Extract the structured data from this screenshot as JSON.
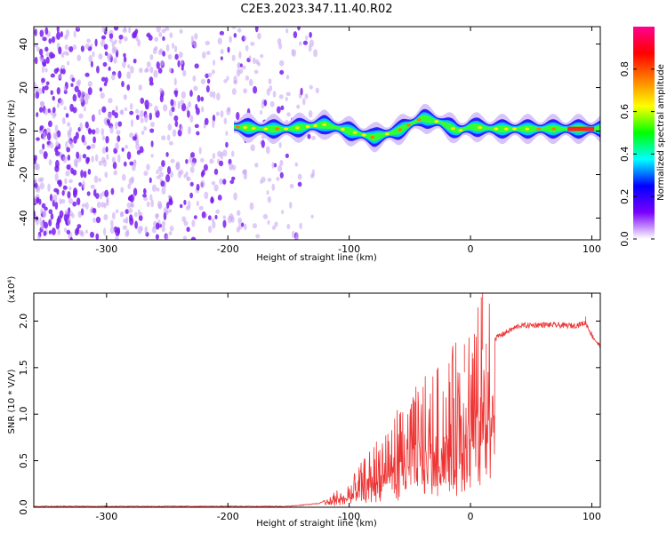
{
  "figure_title": "C2E3.2023.347.11.40.R02",
  "chart_data": [
    {
      "type": "heatmap",
      "title": "C2E3.2023.347.11.40.R02",
      "xlabel": "Height of straight line (km)",
      "ylabel": "Frequency (Hz)",
      "xlim": [
        -360,
        107
      ],
      "ylim": [
        -50,
        48
      ],
      "xticks": [
        -300,
        -200,
        -100,
        0,
        100
      ],
      "yticks": [
        -40,
        -20,
        0,
        20,
        40
      ],
      "colorbar": {
        "label": "Normalized spectral amplitude",
        "range": [
          0,
          1
        ],
        "ticks": [
          "0.0",
          "0.2",
          "0.4",
          "0.6",
          "0.8"
        ],
        "colormap": [
          "#ffffff",
          "#7a00ff",
          "#0000ff",
          "#00ffff",
          "#00ff00",
          "#ffff00",
          "#ff8000",
          "#ff0000",
          "#ff0090"
        ]
      },
      "ridge_center_hz": [
        {
          "x": -195,
          "y": 2
        },
        {
          "x": -170,
          "y": 1
        },
        {
          "x": -150,
          "y": 1
        },
        {
          "x": -120,
          "y": 3
        },
        {
          "x": -100,
          "y": 0
        },
        {
          "x": -80,
          "y": -3
        },
        {
          "x": -60,
          "y": 0
        },
        {
          "x": -40,
          "y": 6
        },
        {
          "x": -25,
          "y": 4
        },
        {
          "x": -10,
          "y": 0
        },
        {
          "x": 0,
          "y": 2
        },
        {
          "x": 20,
          "y": 1
        },
        {
          "x": 60,
          "y": 1
        },
        {
          "x": 107,
          "y": 1
        }
      ],
      "noise_region_km": [
        -360,
        -125
      ]
    },
    {
      "type": "line",
      "xlabel": "Height of straight line (km)",
      "ylabel": "SNR (10 * V/V)",
      "y_multiplier": "(x10⁴)",
      "xlim": [
        -360,
        107
      ],
      "ylim": [
        0,
        2.3
      ],
      "xticks": [
        -300,
        -200,
        -100,
        0,
        100
      ],
      "yticks": [
        "0.0",
        "0.5",
        "1.0",
        "1.5",
        "2.0"
      ],
      "color": "#ee3333",
      "envelope": [
        {
          "x": -360,
          "y": 0.01
        },
        {
          "x": -150,
          "y": 0.01
        },
        {
          "x": -125,
          "y": 0.04
        },
        {
          "x": -100,
          "y": 0.2
        },
        {
          "x": -80,
          "y": 0.5
        },
        {
          "x": -60,
          "y": 0.8
        },
        {
          "x": -40,
          "y": 1.0
        },
        {
          "x": -20,
          "y": 1.15
        },
        {
          "x": -5,
          "y": 1.45
        },
        {
          "x": 5,
          "y": 1.55
        },
        {
          "x": 12,
          "y": 1.75
        },
        {
          "x": 25,
          "y": 1.85
        },
        {
          "x": 40,
          "y": 1.95
        },
        {
          "x": 60,
          "y": 1.96
        },
        {
          "x": 85,
          "y": 1.95
        },
        {
          "x": 95,
          "y": 1.98
        },
        {
          "x": 100,
          "y": 1.85
        },
        {
          "x": 107,
          "y": 1.72
        }
      ],
      "spikes": [
        {
          "x": 10,
          "y": 2.3
        },
        {
          "x": -5,
          "y": 1.75
        },
        {
          "x": 95,
          "y": 2.05
        },
        {
          "x": 13,
          "y": 0.55
        }
      ]
    }
  ]
}
